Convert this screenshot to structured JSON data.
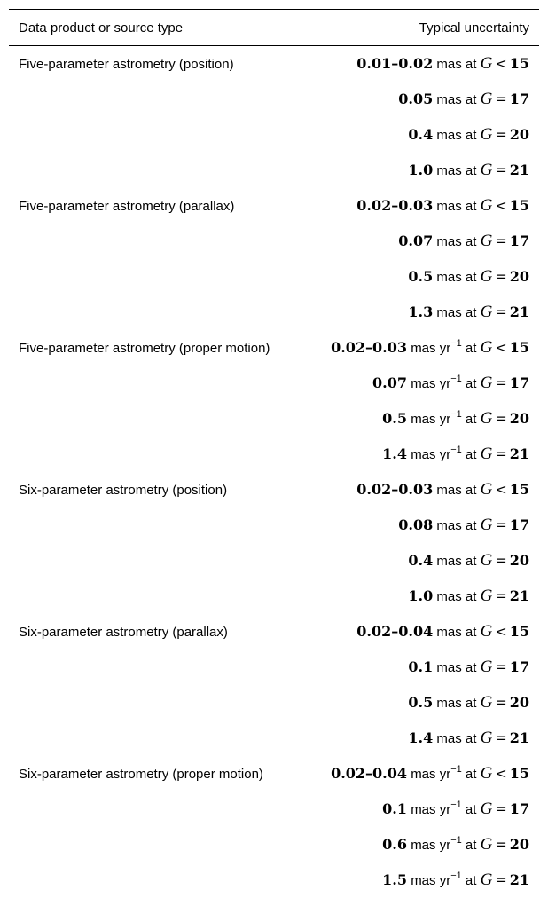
{
  "table": {
    "header": {
      "col1": "Data product or source type",
      "col2": "Typical uncertainty"
    },
    "groups": [
      {
        "label": "Five-parameter astrometry (position)",
        "entries": [
          {
            "value": "0.01–0.02",
            "unit": "mas",
            "op": "<",
            "mag": "15"
          },
          {
            "value": "0.05",
            "unit": "mas",
            "op": "=",
            "mag": "17"
          },
          {
            "value": "0.4",
            "unit": "mas",
            "op": "=",
            "mag": "20"
          },
          {
            "value": "1.0",
            "unit": "mas",
            "op": "=",
            "mag": "21"
          }
        ]
      },
      {
        "label": "Five-parameter astrometry (parallax)",
        "entries": [
          {
            "value": "0.02–0.03",
            "unit": "mas",
            "op": "<",
            "mag": "15"
          },
          {
            "value": "0.07",
            "unit": "mas",
            "op": "=",
            "mag": "17"
          },
          {
            "value": "0.5",
            "unit": "mas",
            "op": "=",
            "mag": "20"
          },
          {
            "value": "1.3",
            "unit": "mas",
            "op": "=",
            "mag": "21"
          }
        ]
      },
      {
        "label": "Five-parameter astrometry (proper motion)",
        "entries": [
          {
            "value": "0.02–0.03",
            "unit": "mas yr",
            "sup": "−1",
            "op": "<",
            "mag": "15"
          },
          {
            "value": "0.07",
            "unit": "mas yr",
            "sup": "−1",
            "op": "=",
            "mag": "17"
          },
          {
            "value": "0.5",
            "unit": "mas yr",
            "sup": "−1",
            "op": "=",
            "mag": "20"
          },
          {
            "value": "1.4",
            "unit": "mas yr",
            "sup": "−1",
            "op": "=",
            "mag": "21"
          }
        ]
      },
      {
        "label": "Six-parameter astrometry (position)",
        "entries": [
          {
            "value": "0.02–0.03",
            "unit": "mas",
            "op": "<",
            "mag": "15"
          },
          {
            "value": "0.08",
            "unit": "mas",
            "op": "=",
            "mag": "17"
          },
          {
            "value": "0.4",
            "unit": "mas",
            "op": "=",
            "mag": "20"
          },
          {
            "value": "1.0",
            "unit": "mas",
            "op": "=",
            "mag": "21"
          }
        ]
      },
      {
        "label": "Six-parameter astrometry (parallax)",
        "entries": [
          {
            "value": "0.02–0.04",
            "unit": "mas",
            "op": "<",
            "mag": "15"
          },
          {
            "value": "0.1",
            "unit": "mas",
            "op": "=",
            "mag": "17"
          },
          {
            "value": "0.5",
            "unit": "mas",
            "op": "=",
            "mag": "20"
          },
          {
            "value": "1.4",
            "unit": "mas",
            "op": "=",
            "mag": "21"
          }
        ]
      },
      {
        "label": "Six-parameter astrometry (proper motion)",
        "entries": [
          {
            "value": "0.02–0.04",
            "unit": "mas yr",
            "sup": "−1",
            "op": "<",
            "mag": "15"
          },
          {
            "value": "0.1",
            "unit": "mas yr",
            "sup": "−1",
            "op": "=",
            "mag": "17"
          },
          {
            "value": "0.6",
            "unit": "mas yr",
            "sup": "−1",
            "op": "=",
            "mag": "20"
          },
          {
            "value": "1.5",
            "unit": "mas yr",
            "sup": "−1",
            "op": "=",
            "mag": "21"
          }
        ]
      }
    ],
    "at_word": "at",
    "mag_symbol": "G"
  }
}
